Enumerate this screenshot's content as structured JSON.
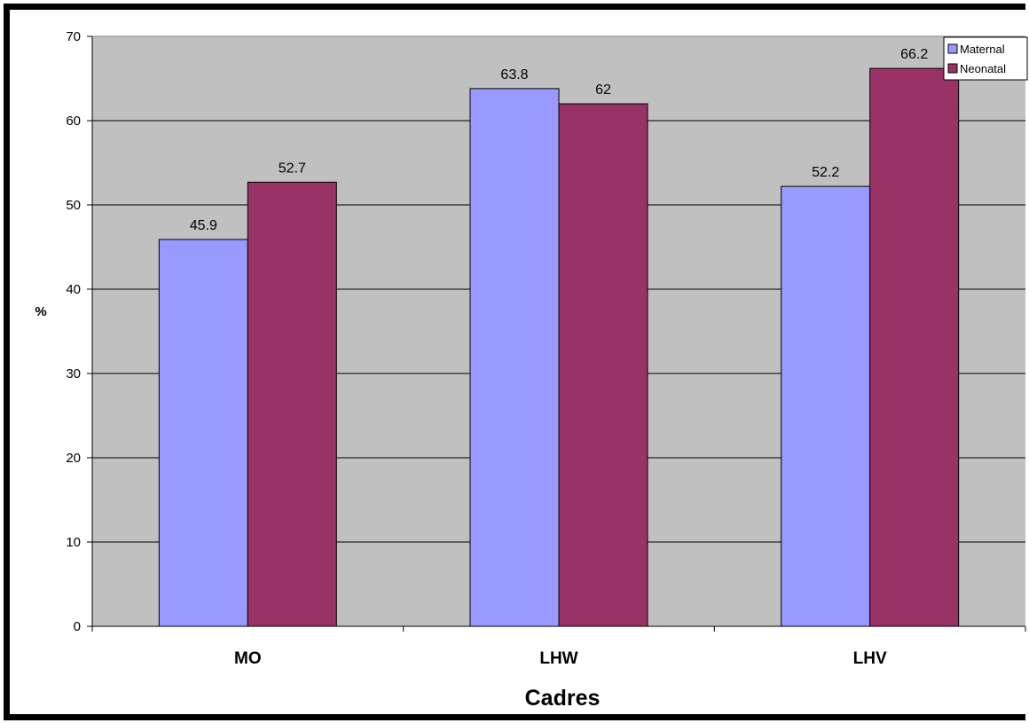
{
  "chart_data": {
    "type": "bar",
    "title": "",
    "xlabel": "Cadres",
    "ylabel": "%",
    "categories": [
      "MO",
      "LHW",
      "LHV"
    ],
    "series": [
      {
        "name": "Maternal",
        "values": [
          45.9,
          63.8,
          52.2
        ],
        "color": "#9999FF"
      },
      {
        "name": "Neonatal",
        "values": [
          52.7,
          62,
          66.2
        ],
        "color": "#993366"
      }
    ],
    "ylim": [
      0,
      70
    ],
    "yticks": [
      0,
      10,
      20,
      30,
      40,
      50,
      60,
      70
    ],
    "grid": true,
    "plot_background": "#C0C0C0",
    "legend_position": "top-right",
    "data_labels": [
      "45.9",
      "52.7",
      "63.8",
      "62",
      "52.2",
      "66.2"
    ]
  }
}
